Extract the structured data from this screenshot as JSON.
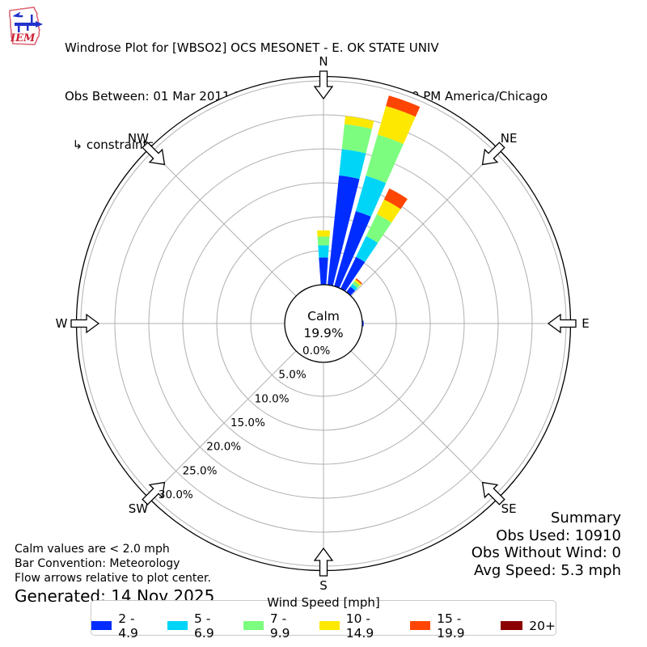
{
  "header": {
    "logo_text": "IEM",
    "title": "Windrose Plot for [WBSO2] OCS MESONET - E. OK STATE UNIV",
    "subtitle": "Obs Between: 01 Mar 2011 12:00 AM - 31 Mar 2025 11:00 PM America/Chicago",
    "constraints": "  ↳ constraints: Mar"
  },
  "chart_data": {
    "type": "windrose",
    "title": "Windrose Plot for [WBSO2] OCS MESONET - E. OK STATE UNIV",
    "rmax_percent": 30,
    "ring_percents": [
      0,
      5,
      10,
      15,
      20,
      25,
      30
    ],
    "ring_labels": [
      "0.0%",
      "5.0%",
      "10.0%",
      "15.0%",
      "20.0%",
      "25.0%",
      "30.0%"
    ],
    "compass_points": [
      {
        "label": "N",
        "angle": 0
      },
      {
        "label": "NE",
        "angle": 45
      },
      {
        "label": "E",
        "angle": 90
      },
      {
        "label": "SE",
        "angle": 135
      },
      {
        "label": "S",
        "angle": 180
      },
      {
        "label": "SW",
        "angle": 225
      },
      {
        "label": "W",
        "angle": 270
      },
      {
        "label": "NW",
        "angle": 315
      }
    ],
    "calm": {
      "label": "Calm",
      "value": "19.9%"
    },
    "speed_bins": [
      {
        "label": "2 - 4.9",
        "color": "#012cff"
      },
      {
        "label": "5 - 6.9",
        "color": "#00d5f7"
      },
      {
        "label": "7 - 9.9",
        "color": "#7cfd7f"
      },
      {
        "label": "10 - 14.9",
        "color": "#fde801"
      },
      {
        "label": "15 - 19.9",
        "color": "#ff4503"
      },
      {
        "label": "20+",
        "color": "#8b0000"
      }
    ],
    "sector_width_deg": 8,
    "bars": [
      {
        "direction_deg": 0,
        "values": [
          4.0,
          1.8,
          1.3,
          0.9,
          0,
          0
        ]
      },
      {
        "direction_deg": 10,
        "values": [
          16.2,
          3.9,
          3.7,
          1.2,
          0,
          0
        ]
      },
      {
        "direction_deg": 20,
        "values": [
          11.5,
          5.4,
          6.3,
          4.4,
          1.6,
          0
        ]
      },
      {
        "direction_deg": 30,
        "values": [
          5.2,
          3.4,
          3.6,
          2.4,
          1.8,
          0
        ]
      },
      {
        "direction_deg": 40,
        "values": [
          1.0,
          0.5,
          0.5,
          0.3,
          0.2,
          0
        ]
      },
      {
        "direction_deg": 90,
        "values": [
          0.2,
          0,
          0,
          0,
          0,
          0
        ]
      }
    ]
  },
  "summary": {
    "title": "Summary",
    "obs_used": "Obs Used: 10910",
    "obs_without_wind": "Obs Without Wind: 0",
    "avg_speed": "Avg Speed: 5.3 mph"
  },
  "notes": {
    "calm": "Calm values are < 2.0 mph",
    "convention": "Bar Convention: Meteorology",
    "arrows": "Flow arrows relative to plot center.",
    "generated": "Generated: 14 Nov 2025"
  },
  "legend": {
    "title": "Wind Speed [mph]"
  }
}
